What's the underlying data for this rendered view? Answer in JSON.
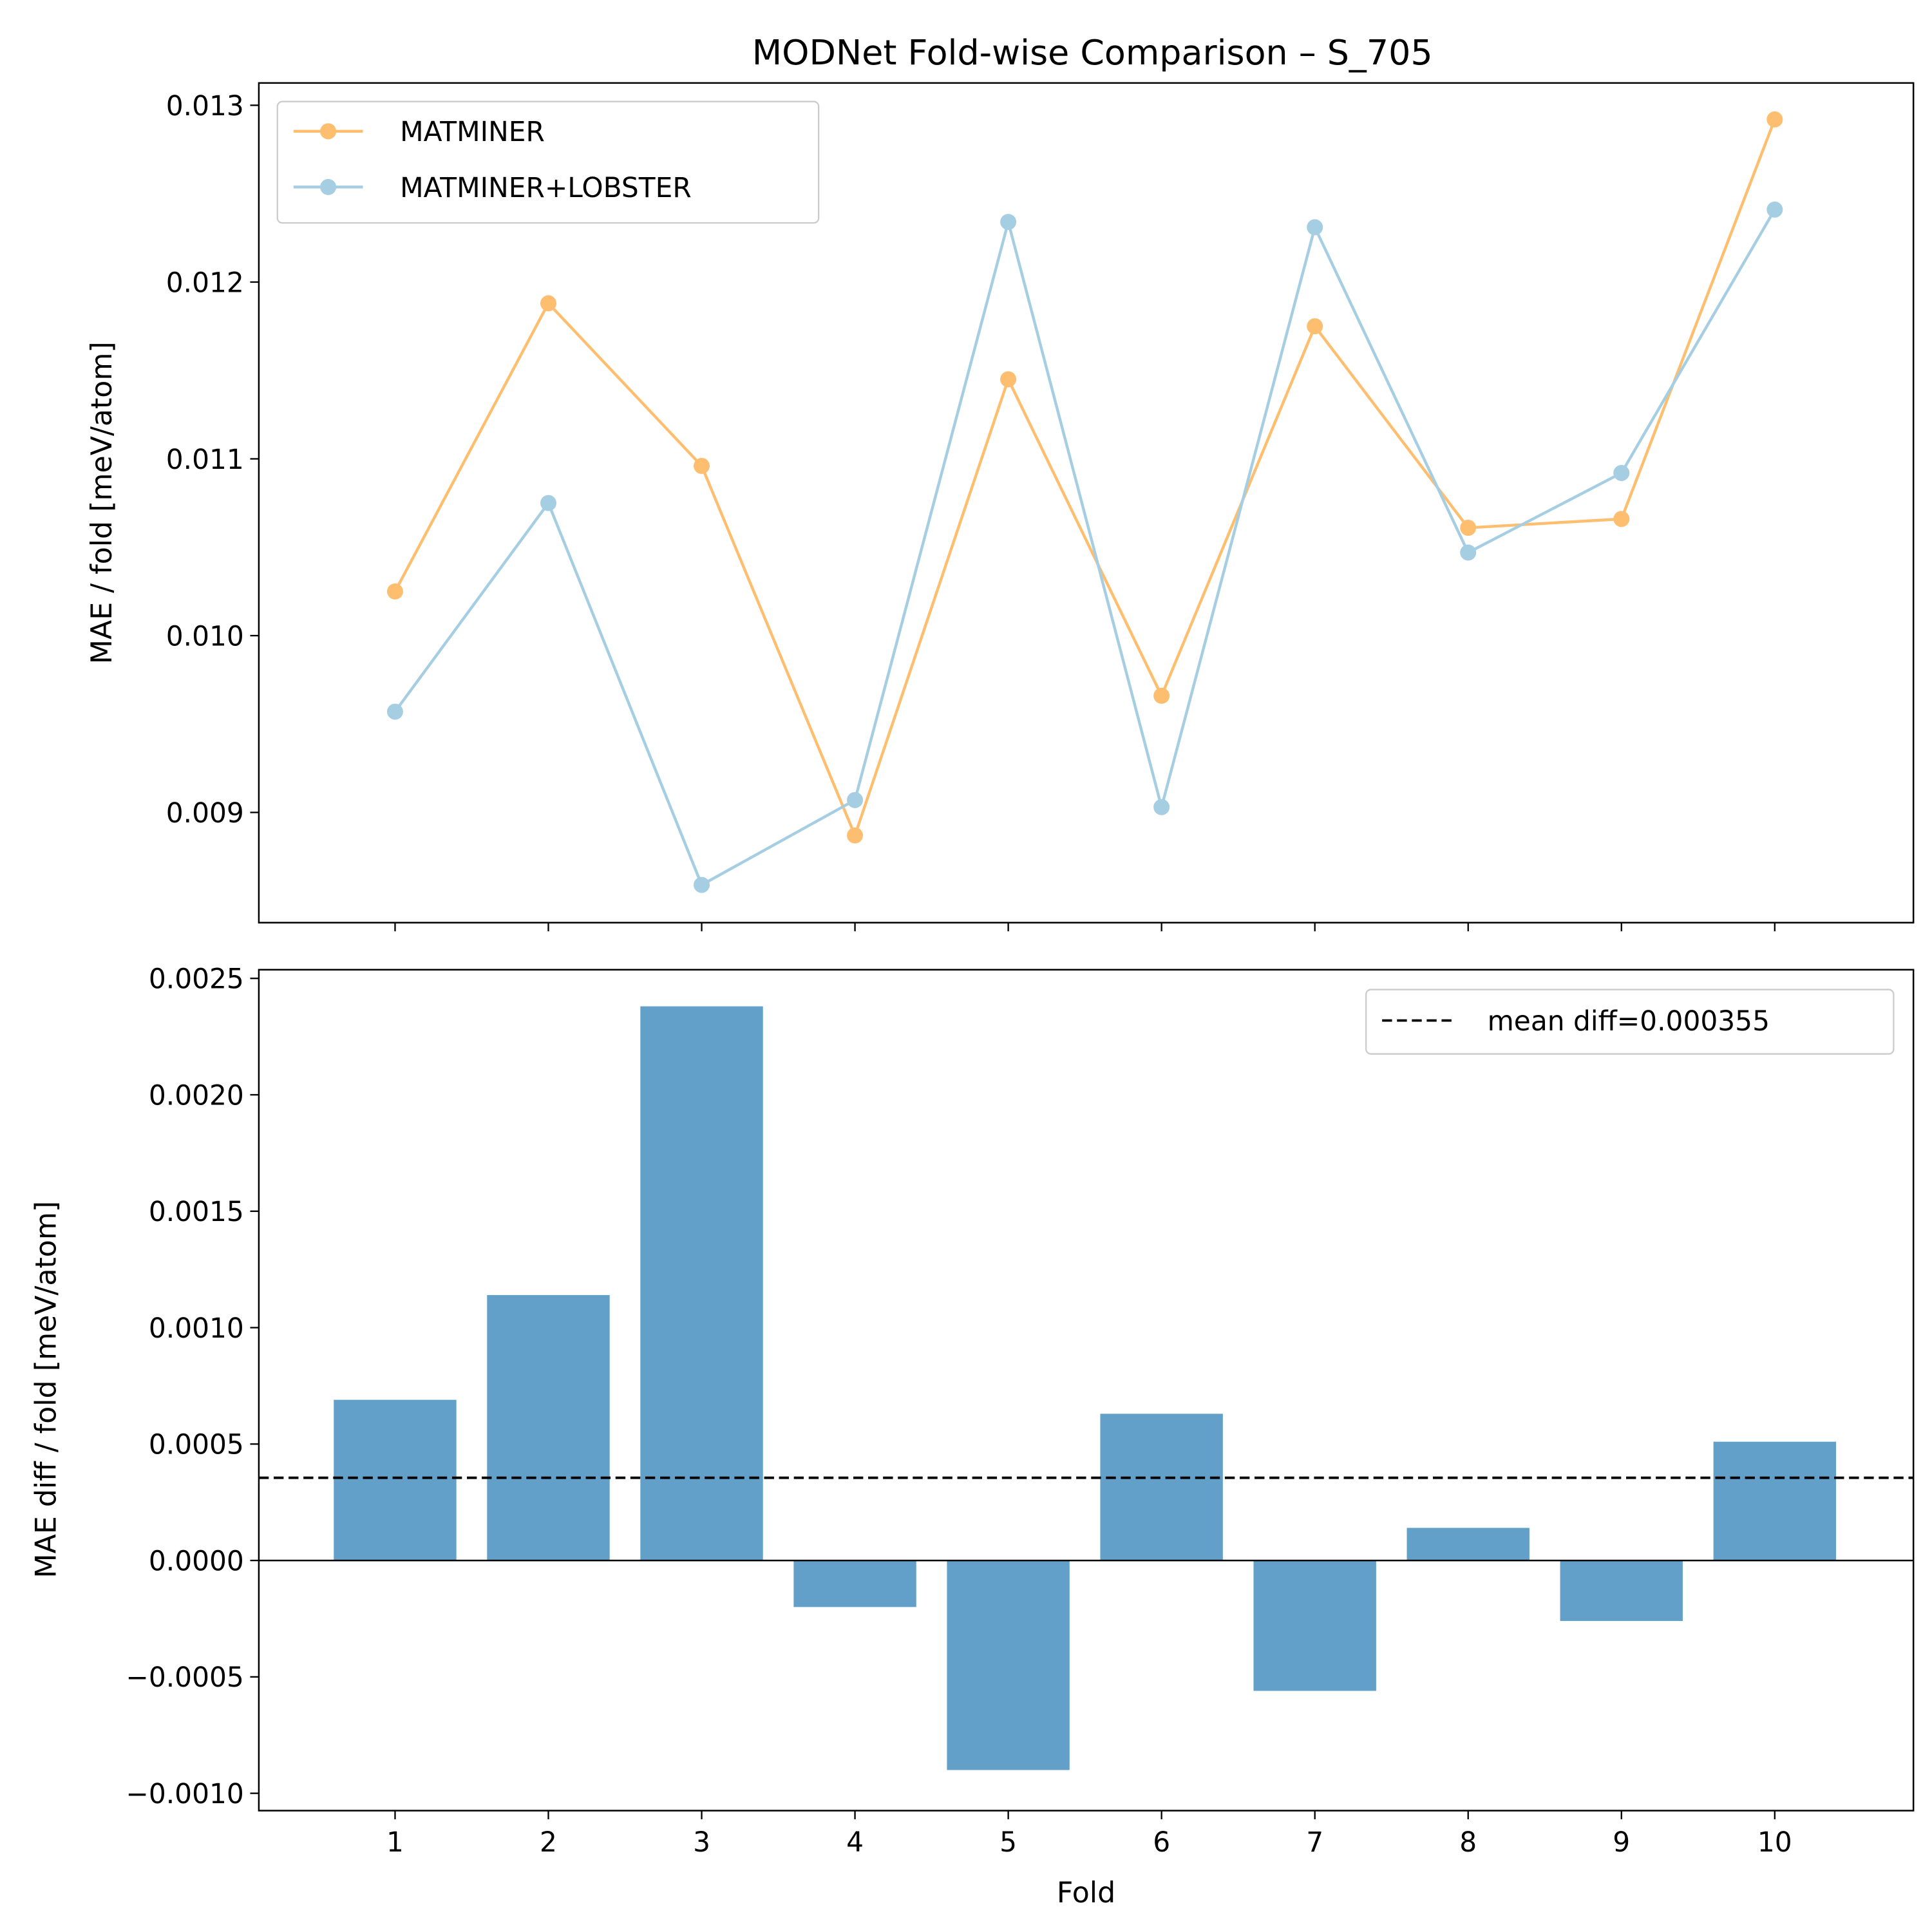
{
  "title": "MODNet Fold-wise Comparison – S_705",
  "chart_data": [
    {
      "type": "line",
      "xlabel": "",
      "ylabel": "MAE / fold [meV/atom]",
      "x": [
        1,
        2,
        3,
        4,
        5,
        6,
        7,
        8,
        9,
        10
      ],
      "ylim": [
        0.00838,
        0.01315
      ],
      "yticks": [
        "0.009",
        "0.010",
        "0.011",
        "0.012",
        "0.013"
      ],
      "grid": false,
      "legend": "top-left",
      "series": [
        {
          "name": "MATMINER",
          "color": "#fdbf6f",
          "values": [
            0.01025,
            0.01188,
            0.01096,
            0.00887,
            0.01145,
            0.00966,
            0.01175,
            0.01061,
            0.01066,
            0.01292
          ]
        },
        {
          "name": "MATMINER+LOBSTER",
          "color": "#a6cee3",
          "values": [
            0.00957,
            0.01075,
            0.00859,
            0.00907,
            0.01234,
            0.00903,
            0.01231,
            0.01047,
            0.01092,
            0.01241
          ]
        }
      ]
    },
    {
      "type": "bar",
      "xlabel": "Fold",
      "ylabel": "MAE diff / fold [meV/atom]",
      "categories": [
        "1",
        "2",
        "3",
        "4",
        "5",
        "6",
        "7",
        "8",
        "9",
        "10"
      ],
      "values": [
        0.00069,
        0.00114,
        0.00238,
        -0.0002,
        -0.0009,
        0.00063,
        -0.00056,
        0.00014,
        -0.00026,
        0.00051
      ],
      "color": "#1f77b4",
      "ylim": [
        -0.00105,
        0.00255
      ],
      "yticks": [
        "−0.0010",
        "−0.0005",
        "0.0000",
        "0.0005",
        "0.0010",
        "0.0015",
        "0.0020",
        "0.0025"
      ],
      "mean_line": {
        "value": 0.000355,
        "label": "mean diff=0.000355",
        "style": "dashed"
      },
      "legend": "top-right",
      "grid": false
    }
  ]
}
